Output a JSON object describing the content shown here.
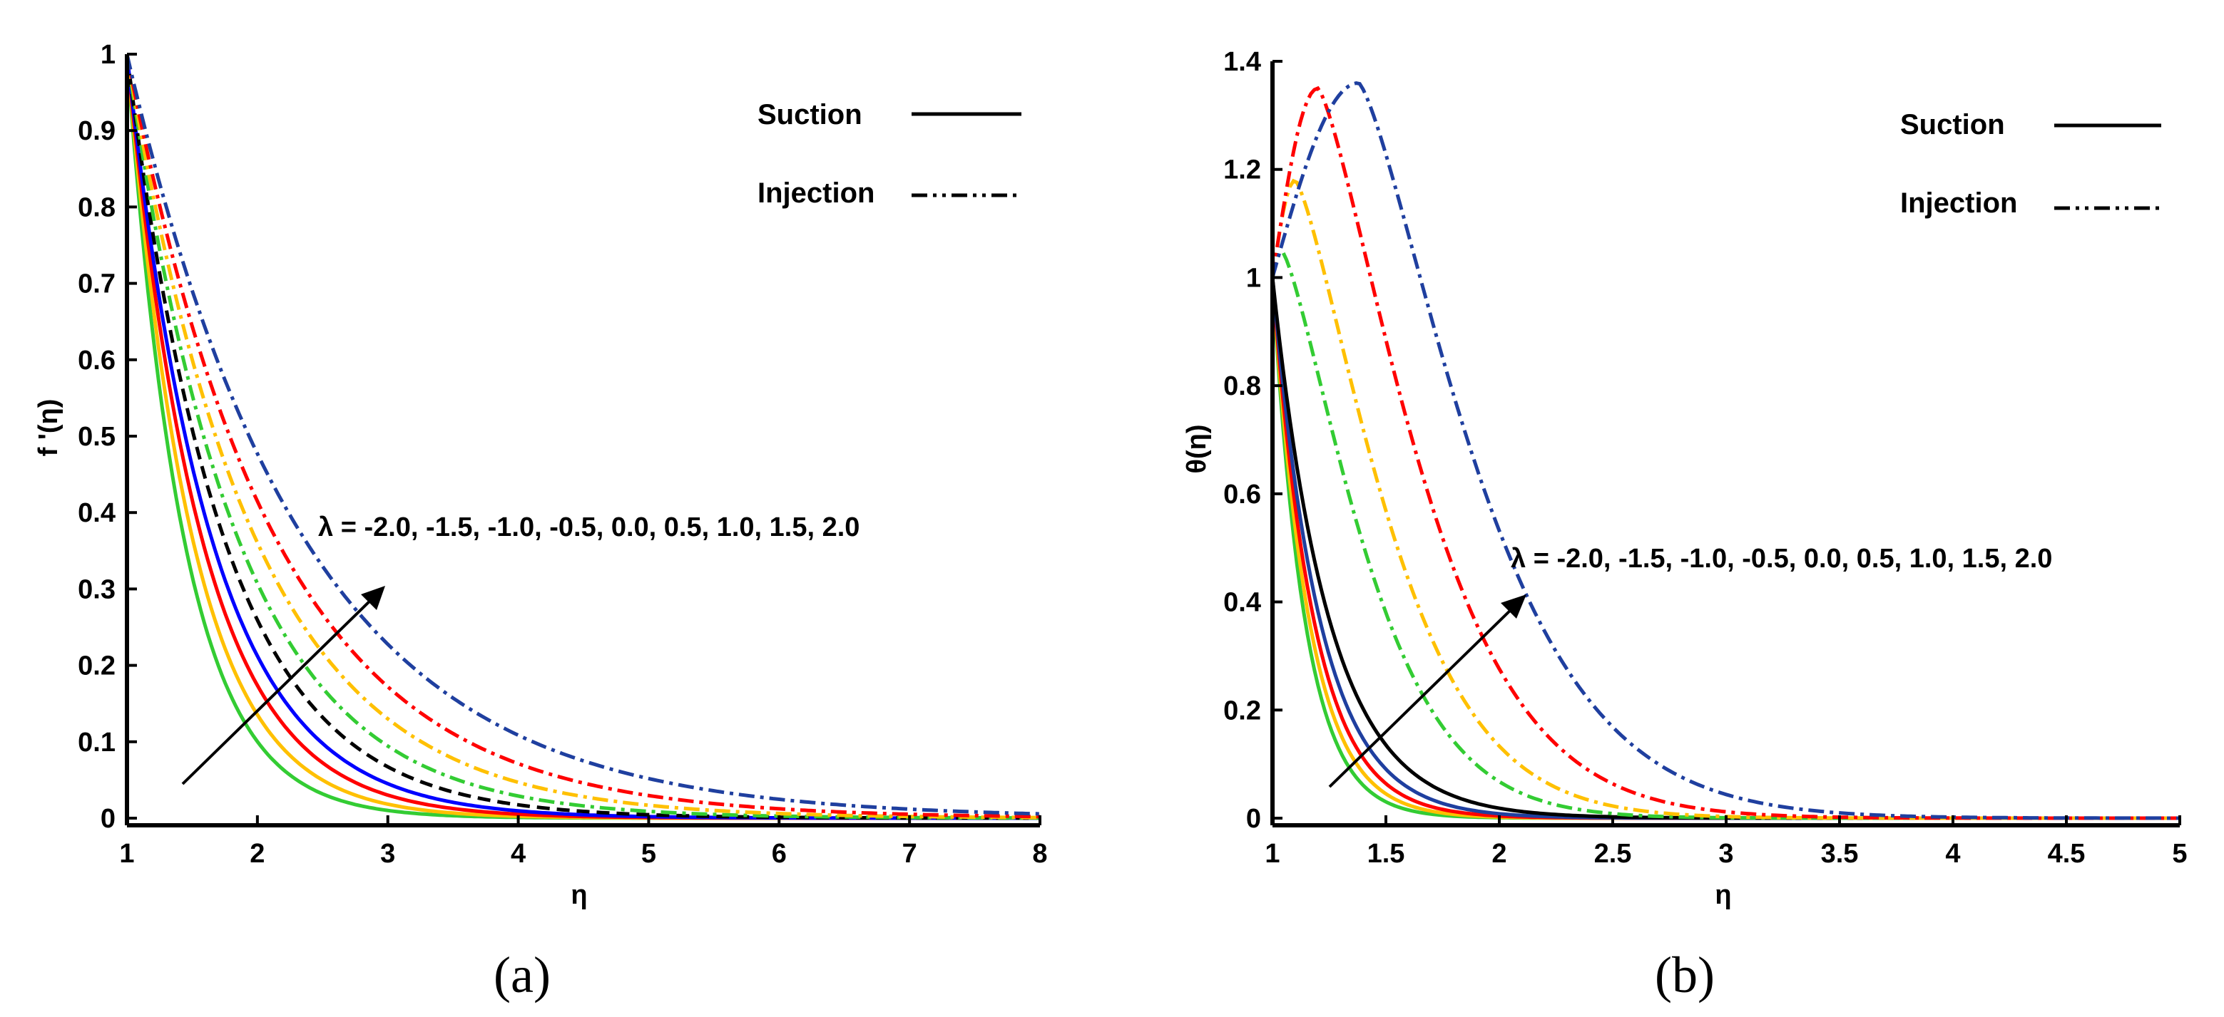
{
  "chart_data": [
    {
      "type": "line",
      "panel_label": "(a)",
      "xlabel": "η",
      "ylabel": "f '(η)",
      "xlim": [
        1,
        8
      ],
      "ylim": [
        0,
        1
      ],
      "xticks": [
        "1",
        "2",
        "3",
        "4",
        "5",
        "6",
        "7",
        "8"
      ],
      "yticks": [
        "0",
        "0.1",
        "0.2",
        "0.3",
        "0.4",
        "0.5",
        "0.6",
        "0.7",
        "0.8",
        "0.9",
        "1"
      ],
      "legend": [
        {
          "label": "Suction",
          "style": "solid"
        },
        {
          "label": "Injection",
          "style": "dash-dot"
        }
      ],
      "annotation": "λ = -2.0, -1.5, -1.0, -0.5, 0.0, 0.5, 1.0, 1.5, 2.0",
      "series": [
        {
          "name": "λ = -2.0",
          "color": "#33cc33",
          "style": "solid",
          "decay": 2.3
        },
        {
          "name": "λ = -1.5",
          "color": "#ffc000",
          "style": "solid",
          "decay": 2.0
        },
        {
          "name": "λ = -1.0",
          "color": "#ff0000",
          "style": "solid",
          "decay": 1.75
        },
        {
          "name": "λ = -0.5",
          "color": "#0000ff",
          "style": "solid",
          "decay": 1.55
        },
        {
          "name": "λ = 0.0",
          "color": "#000000",
          "style": "dashed",
          "decay": 1.35
        },
        {
          "name": "λ = 0.5",
          "color": "#33cc33",
          "style": "dash-dot",
          "decay": 1.18
        },
        {
          "name": "λ = 1.0",
          "color": "#ffc000",
          "style": "dash-dot",
          "decay": 1.02
        },
        {
          "name": "λ = 1.5",
          "color": "#ff0000",
          "style": "dash-dot",
          "decay": 0.88
        },
        {
          "name": "λ = 2.0",
          "color": "#1f3f9f",
          "style": "dash-dot",
          "decay": 0.74
        }
      ]
    },
    {
      "type": "line",
      "panel_label": "(b)",
      "xlabel": "η",
      "ylabel": "θ(η)",
      "xlim": [
        1,
        5
      ],
      "ylim": [
        0,
        1.4
      ],
      "xticks": [
        "1",
        "1.5",
        "2",
        "2.5",
        "3",
        "3.5",
        "4",
        "4.5",
        "5"
      ],
      "yticks": [
        "0",
        "0.2",
        "0.4",
        "0.6",
        "0.8",
        "1",
        "1.2",
        "1.4"
      ],
      "legend": [
        {
          "label": "Suction",
          "style": "solid"
        },
        {
          "label": "Injection",
          "style": "dash-dot"
        }
      ],
      "annotation": "λ = -2.0, -1.5, -1.0, -0.5, 0.0, 0.5, 1.0, 1.5, 2.0",
      "series": [
        {
          "name": "λ = -2.0",
          "color": "#33cc33",
          "style": "solid",
          "decay": 7.0,
          "peak": 1.0,
          "peak_x": 1.0
        },
        {
          "name": "λ = -1.5",
          "color": "#ffc000",
          "style": "solid",
          "decay": 6.2,
          "peak": 1.0,
          "peak_x": 1.0
        },
        {
          "name": "λ = -1.0",
          "color": "#ff0000",
          "style": "solid",
          "decay": 5.5,
          "peak": 1.0,
          "peak_x": 1.0
        },
        {
          "name": "λ = -0.5",
          "color": "#1f3f9f",
          "style": "solid",
          "decay": 4.8,
          "peak": 1.0,
          "peak_x": 1.0
        },
        {
          "name": "λ = 0.0",
          "color": "#000000",
          "style": "solid",
          "decay": 4.0,
          "peak": 1.0,
          "peak_x": 1.0
        },
        {
          "name": "λ = 0.5",
          "color": "#33cc33",
          "style": "dash-dot",
          "decay": 4.0,
          "peak": 1.05,
          "peak_x": 1.04
        },
        {
          "name": "λ = 1.0",
          "color": "#ffc000",
          "style": "dash-dot",
          "decay": 3.6,
          "peak": 1.18,
          "peak_x": 1.1
        },
        {
          "name": "λ = 1.5",
          "color": "#ff0000",
          "style": "dash-dot",
          "decay": 3.2,
          "peak": 1.35,
          "peak_x": 1.2
        },
        {
          "name": "λ = 2.0",
          "color": "#1f3f9f",
          "style": "dash-dot",
          "decay": 2.8,
          "peak": 1.36,
          "peak_x": 1.38
        }
      ]
    }
  ]
}
